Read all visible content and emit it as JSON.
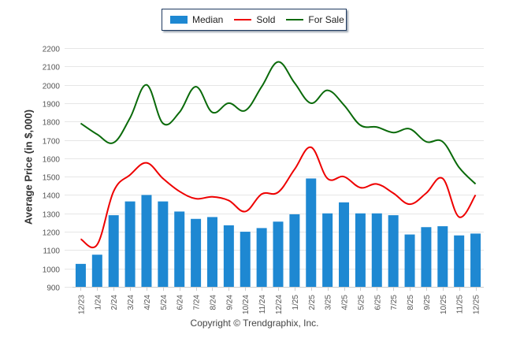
{
  "chart_data": {
    "type": "bar",
    "title": "",
    "xlabel": "",
    "ylabel": "Average Price (in $,000)",
    "ylim": [
      900,
      2200
    ],
    "yticks": [
      900,
      1000,
      1100,
      1200,
      1300,
      1400,
      1500,
      1600,
      1700,
      1800,
      1900,
      2000,
      2100,
      2200
    ],
    "grid": true,
    "legend_position": "top-center",
    "categories": [
      "12/23",
      "1/24",
      "2/24",
      "3/24",
      "4/24",
      "5/24",
      "6/24",
      "7/24",
      "8/24",
      "9/24",
      "10/24",
      "11/24",
      "12/24",
      "1/25",
      "2/25",
      "3/25",
      "4/25",
      "5/25",
      "6/25",
      "7/25",
      "8/25",
      "9/25",
      "10/25",
      "11/25",
      "12/25"
    ],
    "series": [
      {
        "name": "Median",
        "kind": "bar",
        "color": "#1e88d2",
        "values": [
          1025,
          1075,
          1290,
          1365,
          1400,
          1365,
          1310,
          1270,
          1280,
          1235,
          1200,
          1220,
          1255,
          1295,
          1490,
          1300,
          1360,
          1300,
          1300,
          1290,
          1185,
          1225,
          1230,
          1180,
          1190
        ]
      },
      {
        "name": "Sold",
        "kind": "line",
        "color": "#ee0000",
        "values": [
          1160,
          1130,
          1420,
          1510,
          1575,
          1490,
          1420,
          1380,
          1390,
          1370,
          1310,
          1405,
          1415,
          1540,
          1660,
          1490,
          1500,
          1440,
          1460,
          1410,
          1350,
          1410,
          1490,
          1280,
          1400
        ]
      },
      {
        "name": "For Sale",
        "kind": "line",
        "color": "#0a6a0a",
        "values": [
          1790,
          1730,
          1685,
          1820,
          2000,
          1790,
          1850,
          1990,
          1850,
          1900,
          1860,
          1990,
          2125,
          2010,
          1900,
          1970,
          1890,
          1780,
          1770,
          1740,
          1760,
          1690,
          1690,
          1550,
          1460
        ]
      }
    ],
    "annotations": [
      "Copyright © Trendgraphix, Inc."
    ]
  },
  "legend": {
    "items": [
      {
        "label": "Median",
        "color": "#1e88d2"
      },
      {
        "label": "Sold",
        "color": "#ee0000"
      },
      {
        "label": "For Sale",
        "color": "#0a6a0a"
      }
    ]
  },
  "footer": {
    "copyright": "Copyright © Trendgraphix, Inc."
  }
}
